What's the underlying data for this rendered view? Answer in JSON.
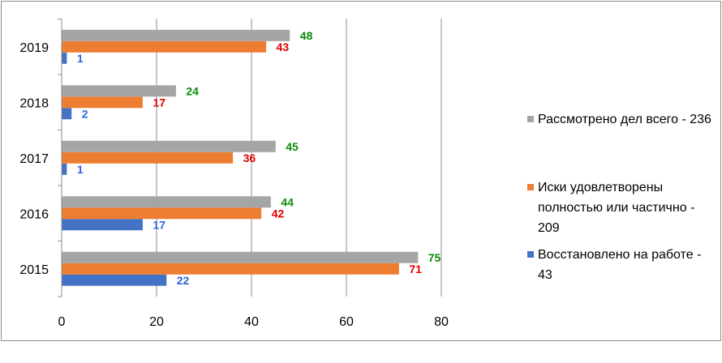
{
  "chart_data": {
    "type": "bar",
    "orientation": "horizontal",
    "categories": [
      "2015",
      "2016",
      "2017",
      "2018",
      "2019"
    ],
    "series": [
      {
        "name": "Восстановлено на работе - 43",
        "color": "#4472C4",
        "label_color": "#2E64E0",
        "values": [
          22,
          17,
          1,
          2,
          1
        ]
      },
      {
        "name": "Иски удовлетворены полностью или частично - 209",
        "color": "#ED7D31",
        "label_color": "#E00000",
        "values": [
          71,
          42,
          36,
          17,
          43
        ]
      },
      {
        "name": "Рассмотрено дел всего - 236",
        "color": "#A5A5A5",
        "label_color": "#0A8A0A",
        "values": [
          75,
          44,
          45,
          24,
          48
        ]
      }
    ],
    "x_ticks": [
      0,
      20,
      40,
      60,
      80
    ],
    "xlim": [
      0,
      80
    ],
    "grid": true,
    "legend_position": "right"
  }
}
